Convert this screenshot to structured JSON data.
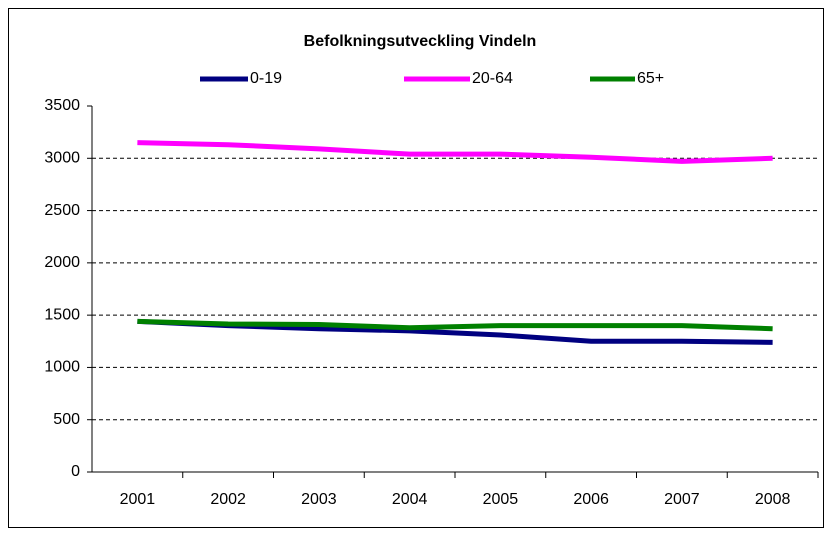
{
  "chart_data": {
    "type": "line",
    "title": "Befolkningsutveckling Vindeln",
    "categories": [
      "2001",
      "2002",
      "2003",
      "2004",
      "2005",
      "2006",
      "2007",
      "2008"
    ],
    "series": [
      {
        "name": "0-19",
        "color": "#000080",
        "values": [
          1440,
          1400,
          1370,
          1350,
          1310,
          1250,
          1250,
          1240
        ]
      },
      {
        "name": "20-64",
        "color": "#ff00ff",
        "values": [
          3150,
          3130,
          3090,
          3040,
          3040,
          3010,
          2970,
          3000
        ]
      },
      {
        "name": "65+",
        "color": "#008000",
        "values": [
          1440,
          1415,
          1410,
          1380,
          1400,
          1400,
          1400,
          1370
        ]
      }
    ],
    "ylim": [
      0,
      3500
    ],
    "yticks": [
      0,
      500,
      1000,
      1500,
      2000,
      2500,
      3000,
      3500
    ],
    "grid": true,
    "legend": "top"
  }
}
